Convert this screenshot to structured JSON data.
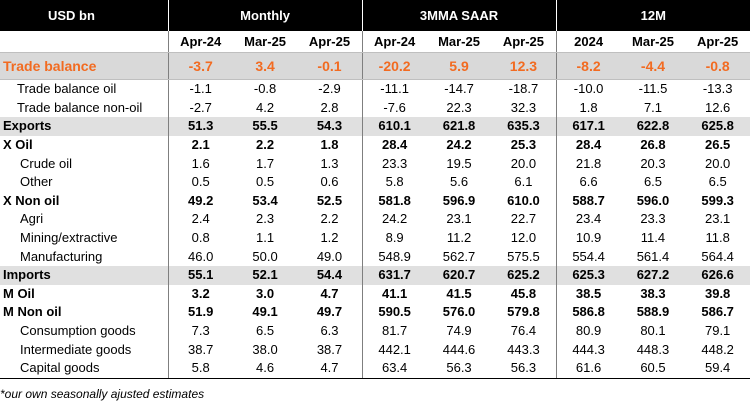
{
  "header": {
    "unit_label": "USD bn",
    "groups": [
      "Monthly",
      "3MMA SAAR",
      "12M"
    ],
    "columns": [
      "Apr-24",
      "Mar-25",
      "Apr-25",
      "Apr-24",
      "Mar-25",
      "Apr-25",
      "2024",
      "Mar-25",
      "Apr-25"
    ]
  },
  "rows": [
    {
      "label": "Trade balance",
      "values": [
        "-3.7",
        "3.4",
        "-0.1",
        "-20.2",
        "5.9",
        "12.3",
        "-8.2",
        "-4.4",
        "-0.8"
      ]
    },
    {
      "label": "Trade balance oil",
      "values": [
        "-1.1",
        "-0.8",
        "-2.9",
        "-11.1",
        "-14.7",
        "-18.7",
        "-10.0",
        "-11.5",
        "-13.3"
      ]
    },
    {
      "label": "Trade balance non-oil",
      "values": [
        "-2.7",
        "4.2",
        "2.8",
        "-7.6",
        "22.3",
        "32.3",
        "1.8",
        "7.1",
        "12.6"
      ]
    },
    {
      "label": "Exports",
      "values": [
        "51.3",
        "55.5",
        "54.3",
        "610.1",
        "621.8",
        "635.3",
        "617.1",
        "622.8",
        "625.8"
      ]
    },
    {
      "label": "X Oil",
      "values": [
        "2.1",
        "2.2",
        "1.8",
        "28.4",
        "24.2",
        "25.3",
        "28.4",
        "26.8",
        "26.5"
      ]
    },
    {
      "label": "Crude oil",
      "values": [
        "1.6",
        "1.7",
        "1.3",
        "23.3",
        "19.5",
        "20.0",
        "21.8",
        "20.3",
        "20.0"
      ]
    },
    {
      "label": "Other",
      "values": [
        "0.5",
        "0.5",
        "0.6",
        "5.8",
        "5.6",
        "6.1",
        "6.6",
        "6.5",
        "6.5"
      ]
    },
    {
      "label": "X Non oil",
      "values": [
        "49.2",
        "53.4",
        "52.5",
        "581.8",
        "596.9",
        "610.0",
        "588.7",
        "596.0",
        "599.3"
      ]
    },
    {
      "label": "Agri",
      "values": [
        "2.4",
        "2.3",
        "2.2",
        "24.2",
        "23.1",
        "22.7",
        "23.4",
        "23.3",
        "23.1"
      ]
    },
    {
      "label": "Mining/extractive",
      "values": [
        "0.8",
        "1.1",
        "1.2",
        "8.9",
        "11.2",
        "12.0",
        "10.9",
        "11.4",
        "11.8"
      ]
    },
    {
      "label": "Manufacturing",
      "values": [
        "46.0",
        "50.0",
        "49.0",
        "548.9",
        "562.7",
        "575.5",
        "554.4",
        "561.4",
        "564.4"
      ]
    },
    {
      "label": "Imports",
      "values": [
        "55.1",
        "52.1",
        "54.4",
        "631.7",
        "620.7",
        "625.2",
        "625.3",
        "627.2",
        "626.6"
      ]
    },
    {
      "label": "M Oil",
      "values": [
        "3.2",
        "3.0",
        "4.7",
        "41.1",
        "41.5",
        "45.8",
        "38.5",
        "38.3",
        "39.8"
      ]
    },
    {
      "label": "M Non oil",
      "values": [
        "51.9",
        "49.1",
        "49.7",
        "590.5",
        "576.0",
        "579.8",
        "586.8",
        "588.9",
        "586.7"
      ]
    },
    {
      "label": "Consumption goods",
      "values": [
        "7.3",
        "6.5",
        "6.3",
        "81.7",
        "74.9",
        "76.4",
        "80.9",
        "80.1",
        "79.1"
      ]
    },
    {
      "label": "Intermediate goods",
      "values": [
        "38.7",
        "38.0",
        "38.7",
        "442.1",
        "444.6",
        "443.3",
        "444.3",
        "448.3",
        "448.2"
      ]
    },
    {
      "label": "Capital goods",
      "values": [
        "5.8",
        "4.6",
        "4.7",
        "63.4",
        "56.3",
        "56.3",
        "61.6",
        "60.5",
        "59.4"
      ]
    }
  ],
  "footnote": "*our own seasonally ajusted estimates",
  "colors": {
    "accent": "#f26b21",
    "header_bg": "#000000",
    "shade": "#e0e0e0",
    "trade_bg": "#d9d9d9"
  }
}
